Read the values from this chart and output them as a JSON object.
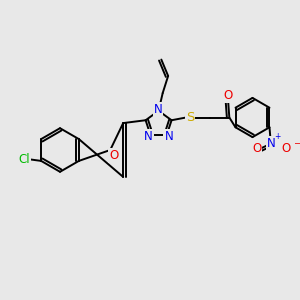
{
  "background_color": "#e8e8e8",
  "bond_color": "#000000",
  "bond_width": 1.4,
  "atom_colors": {
    "C": "#000000",
    "N": "#0000ee",
    "O": "#ee0000",
    "S": "#ccaa00",
    "Cl": "#00bb00"
  },
  "font_size": 8.5,
  "figsize": [
    3.0,
    3.0
  ],
  "dpi": 100
}
